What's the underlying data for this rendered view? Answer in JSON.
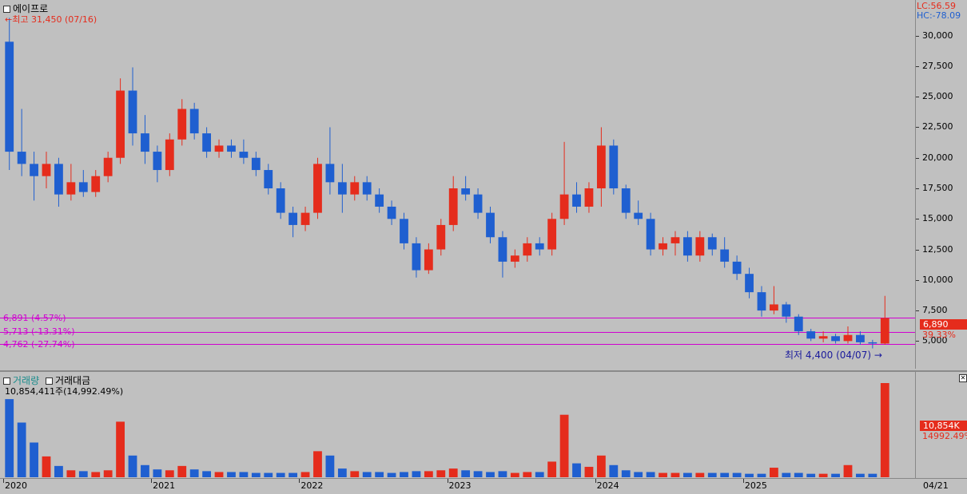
{
  "title": "에이프로",
  "high_label": "최고 31,450 (07/16)",
  "low_label": "최저 4,400 (04/07)",
  "lc_label": "LC:56.59",
  "hc_label": "HC:-78.09",
  "price_tag": "6,890",
  "pct_tag": "39.33%",
  "volume_panel": {
    "tab_volume": "거래량",
    "tab_amount": "거래대금",
    "summary": "10,854,411주(14,992.49%)",
    "vol_tag": "10,854K",
    "vol_pct_tag": "14992.49%",
    "close_icon": "close-icon"
  },
  "levels": [
    {
      "label": "6,891 (4.57%)",
      "value": 6891
    },
    {
      "label": "5,713 (-13.31%)",
      "value": 5713
    },
    {
      "label": "4,762 (-27.74%)",
      "value": 4762
    }
  ],
  "y_ticks": [
    "30,000",
    "27,500",
    "25,000",
    "22,500",
    "20,000",
    "17,500",
    "15,000",
    "12,500",
    "10,000",
    "7,500",
    "5,000"
  ],
  "x_ticks": [
    "2020",
    "2021",
    "2022",
    "2023",
    "2024",
    "2025"
  ],
  "x_right_label": "04/21",
  "colors": {
    "up": "#e52c1c",
    "down": "#1f5fd0",
    "level": "#d000d0",
    "bg": "#c0c0c0"
  },
  "chart_data": {
    "type": "candlestick",
    "title": "에이프로",
    "ylim": [
      3000,
      32000
    ],
    "x_range": [
      "2020-01",
      "2025-04"
    ],
    "series": [
      {
        "values": [
          [
            "2020-01",
            29500,
            31450,
            19000,
            20500
          ],
          [
            "2020-02",
            20500,
            24000,
            18500,
            19500
          ],
          [
            "2020-03",
            19500,
            20500,
            16500,
            18500
          ],
          [
            "2020-04",
            18500,
            20500,
            17500,
            19500
          ],
          [
            "2020-05",
            19500,
            20000,
            16000,
            17000
          ],
          [
            "2020-06",
            17000,
            19500,
            16500,
            18000
          ],
          [
            "2020-07",
            18000,
            19000,
            16800,
            17200
          ],
          [
            "2020-08",
            17200,
            19000,
            16800,
            18500
          ],
          [
            "2020-09",
            18500,
            20500,
            18000,
            20000
          ],
          [
            "2020-10",
            20000,
            26500,
            19500,
            25500
          ],
          [
            "2020-11",
            25500,
            27400,
            21000,
            22000
          ],
          [
            "2020-12",
            22000,
            23500,
            19500,
            20500
          ],
          [
            "2021-01",
            20500,
            21000,
            18000,
            19000
          ],
          [
            "2021-02",
            19000,
            22000,
            18500,
            21500
          ],
          [
            "2021-03",
            21500,
            24800,
            21000,
            24000
          ],
          [
            "2021-04",
            24000,
            24500,
            21500,
            22000
          ],
          [
            "2021-05",
            22000,
            22500,
            20000,
            20500
          ],
          [
            "2021-06",
            20500,
            21500,
            20000,
            21000
          ],
          [
            "2021-07",
            21000,
            21500,
            20000,
            20500
          ],
          [
            "2021-08",
            20500,
            21500,
            19500,
            20000
          ],
          [
            "2021-09",
            20000,
            20500,
            18500,
            19000
          ],
          [
            "2021-10",
            19000,
            19500,
            17000,
            17500
          ],
          [
            "2021-11",
            17500,
            18000,
            15000,
            15500
          ],
          [
            "2021-12",
            15500,
            16000,
            13500,
            14500
          ],
          [
            "2022-01",
            14500,
            16000,
            14000,
            15500
          ],
          [
            "2022-02",
            15500,
            20000,
            15000,
            19500
          ],
          [
            "2022-03",
            19500,
            22500,
            17000,
            18000
          ],
          [
            "2022-04",
            18000,
            19500,
            15500,
            17000
          ],
          [
            "2022-05",
            17000,
            18500,
            16500,
            18000
          ],
          [
            "2022-06",
            18000,
            18500,
            16500,
            17000
          ],
          [
            "2022-07",
            17000,
            17500,
            15500,
            16000
          ],
          [
            "2022-08",
            16000,
            16500,
            14500,
            15000
          ],
          [
            "2022-09",
            15000,
            15500,
            12500,
            13000
          ],
          [
            "2022-10",
            13000,
            13500,
            10200,
            10800
          ],
          [
            "2022-11",
            10800,
            13000,
            10500,
            12500
          ],
          [
            "2022-12",
            12500,
            15000,
            12000,
            14500
          ],
          [
            "2023-01",
            14500,
            18500,
            14000,
            17500
          ],
          [
            "2023-02",
            17500,
            18500,
            16500,
            17000
          ],
          [
            "2023-03",
            17000,
            17500,
            15000,
            15500
          ],
          [
            "2023-04",
            15500,
            16000,
            13000,
            13500
          ],
          [
            "2023-05",
            13500,
            14000,
            10200,
            11500
          ],
          [
            "2023-06",
            11500,
            12500,
            11000,
            12000
          ],
          [
            "2023-07",
            12000,
            13500,
            11500,
            13000
          ],
          [
            "2023-08",
            13000,
            13500,
            12000,
            12500
          ],
          [
            "2023-09",
            12500,
            15500,
            12000,
            15000
          ],
          [
            "2023-10",
            15000,
            21300,
            14500,
            17000
          ],
          [
            "2023-11",
            17000,
            18000,
            15500,
            16000
          ],
          [
            "2023-12",
            16000,
            18000,
            15500,
            17500
          ],
          [
            "2024-01",
            17500,
            22500,
            16000,
            21000
          ],
          [
            "2024-02",
            21000,
            21500,
            17000,
            17500
          ],
          [
            "2024-03",
            17500,
            17800,
            15000,
            15500
          ],
          [
            "2024-04",
            15500,
            16500,
            14500,
            15000
          ],
          [
            "2024-05",
            15000,
            15500,
            12000,
            12500
          ],
          [
            "2024-06",
            12500,
            13500,
            12000,
            13000
          ],
          [
            "2024-07",
            13000,
            14000,
            12000,
            13500
          ],
          [
            "2024-08",
            13500,
            14000,
            11500,
            12000
          ],
          [
            "2024-09",
            12000,
            14000,
            11500,
            13500
          ],
          [
            "2024-10",
            13500,
            13800,
            12000,
            12500
          ],
          [
            "2024-11",
            12500,
            13500,
            11000,
            11500
          ],
          [
            "2024-12",
            11500,
            12000,
            10000,
            10500
          ],
          [
            "2025-01",
            10500,
            11000,
            8500,
            9000
          ],
          [
            "2025-02",
            9000,
            9500,
            7000,
            7500
          ],
          [
            "2025-03",
            7500,
            9500,
            7200,
            8000
          ],
          [
            "2025-04",
            8000,
            8200,
            6500,
            7000
          ],
          [
            "2025-05",
            7000,
            7200,
            5500,
            5800
          ],
          [
            "2025-06",
            5800,
            6000,
            5000,
            5200
          ],
          [
            "2025-07",
            5200,
            5800,
            4900,
            5400
          ],
          [
            "2025-08",
            5400,
            5600,
            4800,
            5000
          ],
          [
            "2025-09",
            5000,
            6200,
            4800,
            5500
          ],
          [
            "2025-10",
            5500,
            5800,
            4700,
            4900
          ],
          [
            "2025-11",
            4900,
            5100,
            4400,
            4800
          ],
          [
            "2025-12",
            4800,
            8700,
            4700,
            6890
          ]
        ]
      }
    ],
    "volume": [
      9.0,
      6.3,
      4.0,
      2.4,
      1.3,
      0.8,
      0.7,
      0.6,
      0.8,
      6.4,
      2.5,
      1.4,
      0.9,
      0.8,
      1.3,
      0.9,
      0.7,
      0.6,
      0.6,
      0.6,
      0.5,
      0.5,
      0.5,
      0.5,
      0.6,
      3.0,
      2.5,
      1.0,
      0.7,
      0.6,
      0.6,
      0.5,
      0.6,
      0.7,
      0.7,
      0.8,
      1.0,
      0.8,
      0.7,
      0.6,
      0.7,
      0.5,
      0.6,
      0.6,
      1.8,
      7.2,
      1.6,
      1.2,
      2.5,
      1.4,
      0.8,
      0.6,
      0.6,
      0.5,
      0.5,
      0.5,
      0.5,
      0.5,
      0.5,
      0.5,
      0.4,
      0.4,
      1.1,
      0.5,
      0.5,
      0.4,
      0.4,
      0.4,
      1.4,
      0.4,
      0.4,
      10.85
    ],
    "ylabel": "",
    "xlabel": ""
  }
}
